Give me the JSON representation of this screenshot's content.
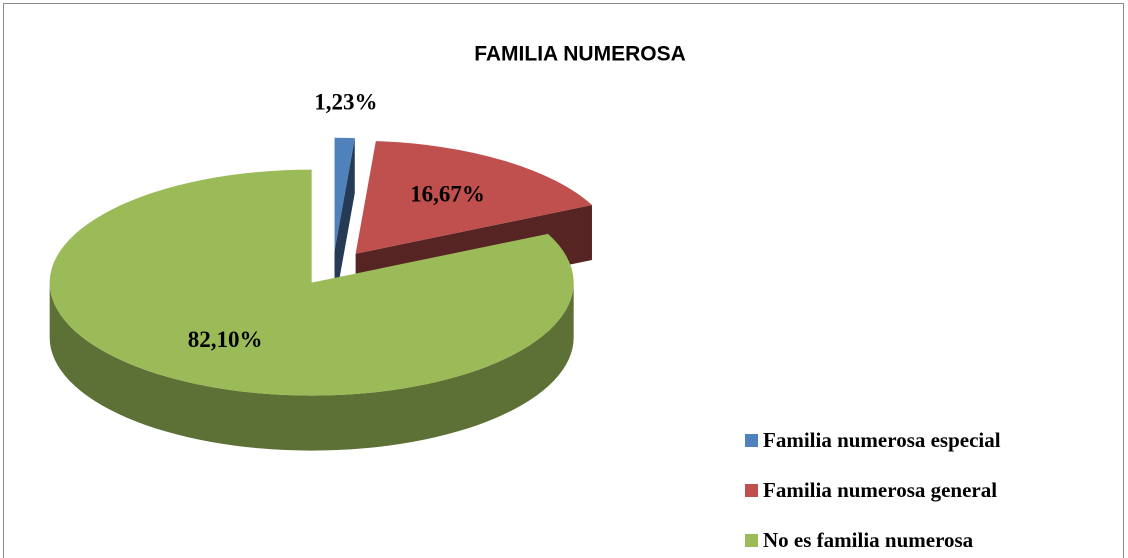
{
  "chart_data": {
    "type": "pie3d",
    "title": "FAMILIA NUMEROSA",
    "categories": [
      "Familia numerosa especial",
      "Familia numerosa general",
      "No es familia numerosa"
    ],
    "values": [
      1.23,
      16.67,
      82.1
    ],
    "value_labels": [
      "1,23%",
      "16,67%",
      "82,10%"
    ],
    "colors": [
      "#4f81bd",
      "#c0504d",
      "#9bbb59"
    ],
    "legend": "bottom-right"
  }
}
